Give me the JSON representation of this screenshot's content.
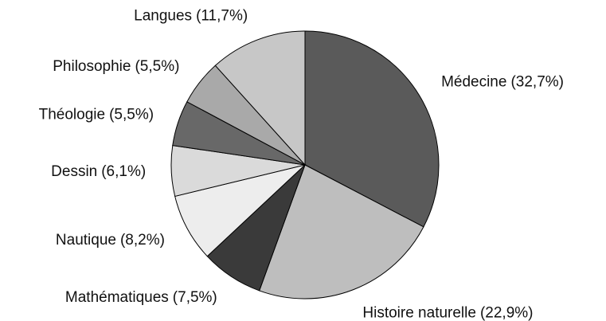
{
  "chart_data": {
    "type": "pie",
    "categories": [
      "Médecine",
      "Histoire naturelle",
      "Mathématiques",
      "Nautique",
      "Dessin",
      "Théologie",
      "Philosophie",
      "Langues"
    ],
    "values": [
      32.7,
      22.9,
      7.5,
      8.2,
      6.1,
      5.5,
      5.5,
      11.7
    ],
    "value_labels": [
      "(32,7%)",
      "(22,9%)",
      "(7,5%)",
      "(8,2%)",
      "(6,1%)",
      "(5,5%)",
      "(5,5%)",
      "(11,7%)"
    ],
    "colors": [
      "#5a5a5a",
      "#bebebe",
      "#3a3a3a",
      "#ededed",
      "#dadada",
      "#686868",
      "#a9a9a9",
      "#c7c7c7"
    ]
  }
}
